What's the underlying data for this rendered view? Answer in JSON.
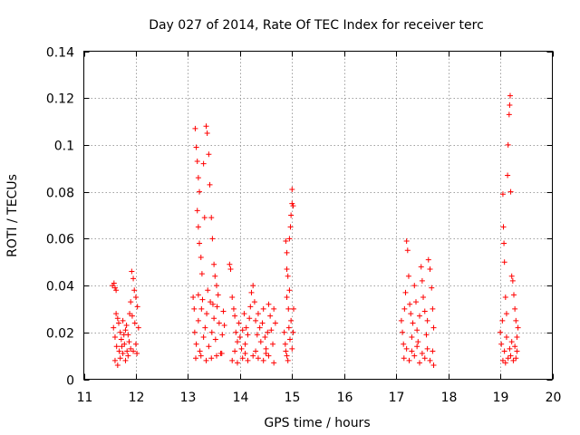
{
  "chart_data": {
    "type": "scatter",
    "title": "Day 027 of 2014, Rate Of TEC Index for receiver terc",
    "xlabel": "GPS time / hours",
    "ylabel": "ROTI / TECUs",
    "xlim": [
      11,
      20
    ],
    "ylim": [
      0,
      0.14
    ],
    "xticks": [
      11,
      12,
      13,
      14,
      15,
      16,
      17,
      18,
      19,
      20
    ],
    "yticks": [
      0,
      0.02,
      0.04,
      0.06,
      0.08,
      0.1,
      0.12,
      0.14
    ],
    "xtick_labels": [
      "11",
      "12",
      "13",
      "14",
      "15",
      "16",
      "17",
      "18",
      "19",
      "20"
    ],
    "ytick_labels": [
      "0",
      "0.02",
      "0.04",
      "0.06",
      "0.08",
      "0.1",
      "0.12",
      "0.14"
    ],
    "grid": true,
    "marker": "+",
    "color": "#ff0000",
    "series": [
      {
        "name": "ROTI",
        "points": [
          [
            11.55,
            0.04
          ],
          [
            11.58,
            0.041
          ],
          [
            11.6,
            0.039
          ],
          [
            11.62,
            0.038
          ],
          [
            11.57,
            0.022
          ],
          [
            11.6,
            0.018
          ],
          [
            11.63,
            0.014
          ],
          [
            11.65,
            0.026
          ],
          [
            11.68,
            0.012
          ],
          [
            11.7,
            0.02
          ],
          [
            11.72,
            0.017
          ],
          [
            11.75,
            0.025
          ],
          [
            11.78,
            0.015
          ],
          [
            11.8,
            0.021
          ],
          [
            11.83,
            0.012
          ],
          [
            11.85,
            0.019
          ],
          [
            11.88,
            0.028
          ],
          [
            11.9,
            0.033
          ],
          [
            11.92,
            0.046
          ],
          [
            11.95,
            0.043
          ],
          [
            11.97,
            0.038
          ],
          [
            12.0,
            0.035
          ],
          [
            12.03,
            0.031
          ],
          [
            12.05,
            0.022
          ],
          [
            11.6,
            0.008
          ],
          [
            11.65,
            0.006
          ],
          [
            11.7,
            0.009
          ],
          [
            11.75,
            0.011
          ],
          [
            11.8,
            0.008
          ],
          [
            11.85,
            0.01
          ],
          [
            11.9,
            0.013
          ],
          [
            11.95,
            0.012
          ],
          [
            12.0,
            0.015
          ],
          [
            12.02,
            0.011
          ],
          [
            11.62,
            0.028
          ],
          [
            11.67,
            0.024
          ],
          [
            11.73,
            0.014
          ],
          [
            11.77,
            0.019
          ],
          [
            11.82,
            0.023
          ],
          [
            11.87,
            0.016
          ],
          [
            11.93,
            0.027
          ],
          [
            11.98,
            0.024
          ],
          [
            13.1,
            0.035
          ],
          [
            13.12,
            0.03
          ],
          [
            13.14,
            0.107
          ],
          [
            13.16,
            0.099
          ],
          [
            13.18,
            0.093
          ],
          [
            13.2,
            0.086
          ],
          [
            13.22,
            0.08
          ],
          [
            13.18,
            0.072
          ],
          [
            13.2,
            0.065
          ],
          [
            13.22,
            0.058
          ],
          [
            13.25,
            0.052
          ],
          [
            13.27,
            0.045
          ],
          [
            13.3,
            0.092
          ],
          [
            13.32,
            0.069
          ],
          [
            13.35,
            0.108
          ],
          [
            13.37,
            0.105
          ],
          [
            13.4,
            0.096
          ],
          [
            13.42,
            0.083
          ],
          [
            13.45,
            0.069
          ],
          [
            13.47,
            0.06
          ],
          [
            13.5,
            0.049
          ],
          [
            13.52,
            0.044
          ],
          [
            13.55,
            0.04
          ],
          [
            13.13,
            0.02
          ],
          [
            13.16,
            0.015
          ],
          [
            13.2,
            0.025
          ],
          [
            13.23,
            0.012
          ],
          [
            13.26,
            0.03
          ],
          [
            13.3,
            0.018
          ],
          [
            13.33,
            0.022
          ],
          [
            13.36,
            0.028
          ],
          [
            13.4,
            0.014
          ],
          [
            13.43,
            0.033
          ],
          [
            13.46,
            0.02
          ],
          [
            13.5,
            0.026
          ],
          [
            13.53,
            0.017
          ],
          [
            13.56,
            0.031
          ],
          [
            13.6,
            0.024
          ],
          [
            13.63,
            0.011
          ],
          [
            13.66,
            0.019
          ],
          [
            13.7,
            0.023
          ],
          [
            13.15,
            0.009
          ],
          [
            13.25,
            0.01
          ],
          [
            13.35,
            0.008
          ],
          [
            13.45,
            0.009
          ],
          [
            13.55,
            0.01
          ],
          [
            13.65,
            0.011
          ],
          [
            13.2,
            0.036
          ],
          [
            13.28,
            0.034
          ],
          [
            13.38,
            0.038
          ],
          [
            13.48,
            0.032
          ],
          [
            13.58,
            0.036
          ],
          [
            13.68,
            0.029
          ],
          [
            13.8,
            0.049
          ],
          [
            13.82,
            0.047
          ],
          [
            13.85,
            0.035
          ],
          [
            13.88,
            0.03
          ],
          [
            13.9,
            0.027
          ],
          [
            13.92,
            0.02
          ],
          [
            13.95,
            0.016
          ],
          [
            13.98,
            0.024
          ],
          [
            14.0,
            0.018
          ],
          [
            14.03,
            0.013
          ],
          [
            14.05,
            0.021
          ],
          [
            14.08,
            0.028
          ],
          [
            14.1,
            0.015
          ],
          [
            14.12,
            0.022
          ],
          [
            14.15,
            0.019
          ],
          [
            14.18,
            0.026
          ],
          [
            14.2,
            0.031
          ],
          [
            14.22,
            0.037
          ],
          [
            14.25,
            0.04
          ],
          [
            14.28,
            0.033
          ],
          [
            14.3,
            0.025
          ],
          [
            14.33,
            0.019
          ],
          [
            14.35,
            0.028
          ],
          [
            14.38,
            0.022
          ],
          [
            14.4,
            0.016
          ],
          [
            14.43,
            0.024
          ],
          [
            14.45,
            0.03
          ],
          [
            14.48,
            0.018
          ],
          [
            14.5,
            0.013
          ],
          [
            14.53,
            0.02
          ],
          [
            14.55,
            0.032
          ],
          [
            14.58,
            0.027
          ],
          [
            14.6,
            0.021
          ],
          [
            14.63,
            0.015
          ],
          [
            14.65,
            0.03
          ],
          [
            14.68,
            0.024
          ],
          [
            13.85,
            0.008
          ],
          [
            13.95,
            0.007
          ],
          [
            14.05,
            0.009
          ],
          [
            14.15,
            0.008
          ],
          [
            14.25,
            0.01
          ],
          [
            14.35,
            0.009
          ],
          [
            14.45,
            0.008
          ],
          [
            14.55,
            0.01
          ],
          [
            14.65,
            0.007
          ],
          [
            13.9,
            0.012
          ],
          [
            14.1,
            0.011
          ],
          [
            14.3,
            0.012
          ],
          [
            14.5,
            0.011
          ],
          [
            14.85,
            0.02
          ],
          [
            14.87,
            0.015
          ],
          [
            14.88,
            0.059
          ],
          [
            14.9,
            0.054
          ],
          [
            14.9,
            0.047
          ],
          [
            14.92,
            0.044
          ],
          [
            14.93,
            0.03
          ],
          [
            14.95,
            0.06
          ],
          [
            14.97,
            0.065
          ],
          [
            14.98,
            0.07
          ],
          [
            15.0,
            0.075
          ],
          [
            15.0,
            0.081
          ],
          [
            15.02,
            0.074
          ],
          [
            14.88,
            0.012
          ],
          [
            14.9,
            0.01
          ],
          [
            14.92,
            0.008
          ],
          [
            14.94,
            0.022
          ],
          [
            14.96,
            0.017
          ],
          [
            14.98,
            0.025
          ],
          [
            15.0,
            0.013
          ],
          [
            15.02,
            0.02
          ],
          [
            15.03,
            0.03
          ],
          [
            14.9,
            0.035
          ],
          [
            14.95,
            0.038
          ],
          [
            17.1,
            0.025
          ],
          [
            17.12,
            0.02
          ],
          [
            17.14,
            0.015
          ],
          [
            17.16,
            0.03
          ],
          [
            17.18,
            0.037
          ],
          [
            17.2,
            0.059
          ],
          [
            17.22,
            0.055
          ],
          [
            17.24,
            0.044
          ],
          [
            17.26,
            0.032
          ],
          [
            17.28,
            0.028
          ],
          [
            17.3,
            0.018
          ],
          [
            17.32,
            0.024
          ],
          [
            17.35,
            0.04
          ],
          [
            17.38,
            0.033
          ],
          [
            17.4,
            0.021
          ],
          [
            17.42,
            0.016
          ],
          [
            17.45,
            0.027
          ],
          [
            17.48,
            0.048
          ],
          [
            17.5,
            0.042
          ],
          [
            17.52,
            0.035
          ],
          [
            17.55,
            0.029
          ],
          [
            17.58,
            0.019
          ],
          [
            17.6,
            0.025
          ],
          [
            17.62,
            0.051
          ],
          [
            17.65,
            0.047
          ],
          [
            17.68,
            0.039
          ],
          [
            17.7,
            0.03
          ],
          [
            17.72,
            0.022
          ],
          [
            17.15,
            0.009
          ],
          [
            17.25,
            0.008
          ],
          [
            17.35,
            0.01
          ],
          [
            17.45,
            0.007
          ],
          [
            17.55,
            0.009
          ],
          [
            17.65,
            0.008
          ],
          [
            17.72,
            0.006
          ],
          [
            17.2,
            0.013
          ],
          [
            17.3,
            0.012
          ],
          [
            17.4,
            0.014
          ],
          [
            17.5,
            0.011
          ],
          [
            17.6,
            0.013
          ],
          [
            17.7,
            0.012
          ],
          [
            19.0,
            0.02
          ],
          [
            19.02,
            0.015
          ],
          [
            19.04,
            0.025
          ],
          [
            19.05,
            0.079
          ],
          [
            19.06,
            0.065
          ],
          [
            19.07,
            0.058
          ],
          [
            19.08,
            0.05
          ],
          [
            19.1,
            0.035
          ],
          [
            19.12,
            0.028
          ],
          [
            19.14,
            0.087
          ],
          [
            19.15,
            0.1
          ],
          [
            19.17,
            0.113
          ],
          [
            19.18,
            0.117
          ],
          [
            19.19,
            0.121
          ],
          [
            19.2,
            0.08
          ],
          [
            19.22,
            0.044
          ],
          [
            19.24,
            0.042
          ],
          [
            19.26,
            0.036
          ],
          [
            19.28,
            0.03
          ],
          [
            19.3,
            0.025
          ],
          [
            19.32,
            0.018
          ],
          [
            19.34,
            0.022
          ],
          [
            19.05,
            0.008
          ],
          [
            19.1,
            0.007
          ],
          [
            19.15,
            0.009
          ],
          [
            19.2,
            0.01
          ],
          [
            19.25,
            0.008
          ],
          [
            19.3,
            0.009
          ],
          [
            19.08,
            0.012
          ],
          [
            19.18,
            0.013
          ],
          [
            19.28,
            0.014
          ],
          [
            19.12,
            0.018
          ],
          [
            19.22,
            0.016
          ],
          [
            19.32,
            0.012
          ]
        ]
      }
    ]
  }
}
